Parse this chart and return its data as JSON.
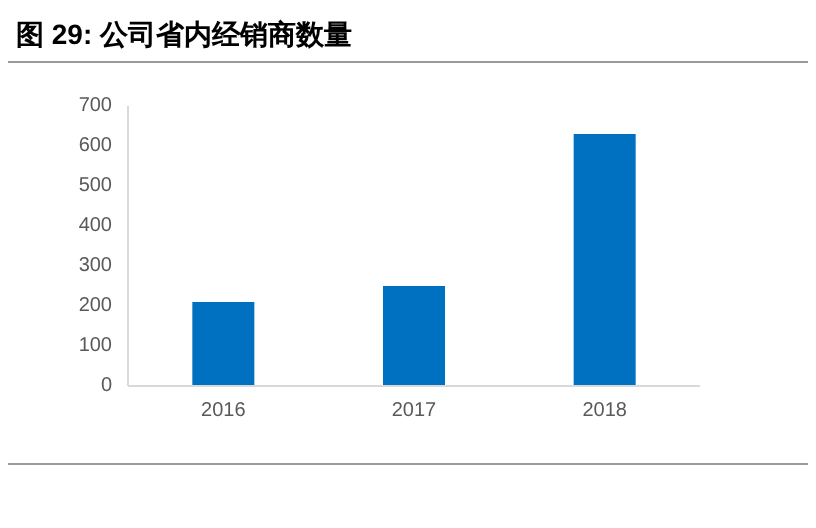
{
  "chart_data": {
    "type": "bar",
    "title": "图  29:  公司省内经销商数量",
    "categories": [
      "2016",
      "2017",
      "2018"
    ],
    "values": [
      210,
      250,
      630
    ],
    "color": "#0070c0",
    "ylim": [
      0,
      700
    ],
    "yticks": [
      0,
      100,
      200,
      300,
      400,
      500,
      600,
      700
    ]
  }
}
